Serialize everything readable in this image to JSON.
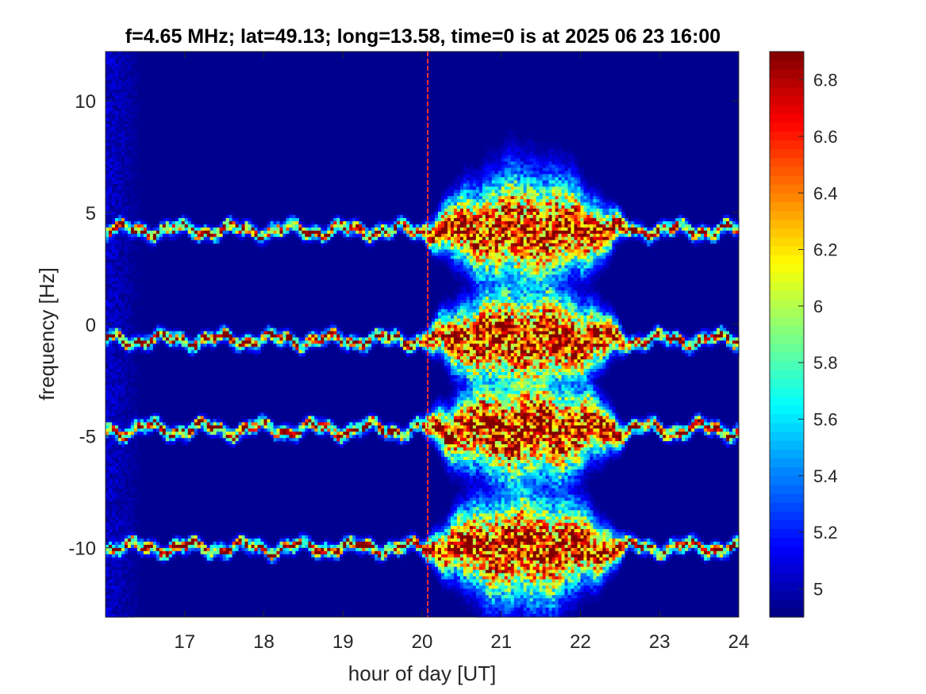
{
  "chart_data": {
    "type": "heatmap",
    "title": "f=4.65 MHz;  lat=49.13; long=13.58, time=0 is at 2025 06 23 16:00",
    "xlabel": "hour of day [UT]",
    "ylabel": "frequency [Hz]",
    "xlim": [
      16,
      24
    ],
    "ylim": [
      -13.1,
      12.2
    ],
    "x_ticks": [
      17,
      18,
      19,
      20,
      21,
      22,
      23,
      24
    ],
    "y_ticks": [
      -10,
      -5,
      0,
      5,
      10
    ],
    "x_tick_labels": [
      "17",
      "18",
      "19",
      "20",
      "21",
      "22",
      "23",
      "24"
    ],
    "y_tick_labels": [
      "-10",
      "-5",
      "0",
      "5",
      "10"
    ],
    "grid": false,
    "colormap": "jet",
    "colorbar": {
      "range": [
        4.9,
        6.9
      ],
      "ticks": [
        5,
        5.2,
        5.4,
        5.6,
        5.8,
        6,
        6.2,
        6.4,
        6.6,
        6.8
      ],
      "tick_labels": [
        "5",
        "5.2",
        "5.4",
        "5.6",
        "5.8",
        "6",
        "6.2",
        "6.4",
        "6.6",
        "6.8"
      ],
      "levels": 64
    },
    "background_value": 4.92,
    "bands": [
      {
        "center_hz": 4.2,
        "amplitude": 0.2
      },
      {
        "center_hz": -0.7,
        "amplitude": 0.2
      },
      {
        "center_hz": -4.7,
        "amplitude": 0.25
      },
      {
        "center_hz": -10.0,
        "amplitude": 0.2
      }
    ],
    "vertical_line_hour": 20.07,
    "disturbance_window_hours": [
      20.0,
      22.6
    ]
  },
  "colors": {
    "background": "#ffffff",
    "axis": "#262626",
    "plot_background": "#00008f"
  }
}
